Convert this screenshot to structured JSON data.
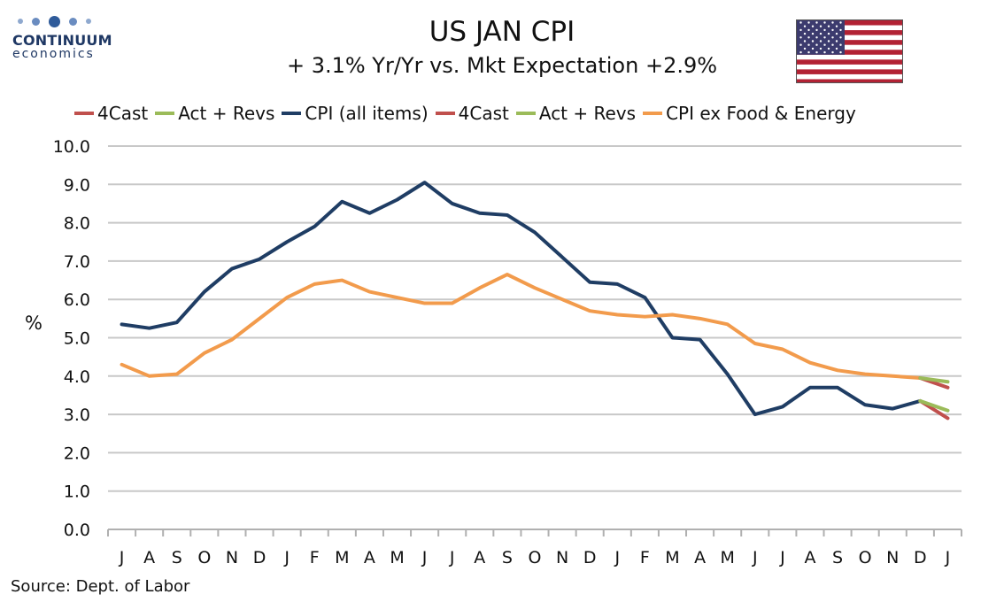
{
  "logo": {
    "name": "CONTINUUM",
    "sub": "economics"
  },
  "header": {
    "title": "US JAN CPI",
    "subtitle": "+ 3.1% Yr/Yr  vs. Mkt Expectation +2.9%"
  },
  "source": "Source: Dept. of Labor",
  "colors": {
    "headline": "#1f3d64",
    "core": "#f29b4c",
    "forecast": "#c0504d",
    "actual": "#9bbb59",
    "grid": "#c8c8c8"
  },
  "chart_data": {
    "type": "line",
    "ylabel": "%",
    "ylim": [
      0,
      10
    ],
    "yticks": [
      "0.0",
      "1.0",
      "2.0",
      "3.0",
      "4.0",
      "5.0",
      "6.0",
      "7.0",
      "8.0",
      "9.0",
      "10.0"
    ],
    "categories": [
      "J",
      "A",
      "S",
      "O",
      "N",
      "D",
      "J",
      "F",
      "M",
      "A",
      "M",
      "J",
      "J",
      "A",
      "S",
      "O",
      "N",
      "D",
      "J",
      "F",
      "M",
      "A",
      "M",
      "J",
      "J",
      "A",
      "S",
      "O",
      "N",
      "D",
      "J"
    ],
    "grid": true,
    "legend_position": "top",
    "legend": [
      "4Cast",
      "Act + Revs",
      "CPI (all items)",
      "4Cast",
      "Act + Revs",
      "CPI ex Food & Energy"
    ],
    "series": [
      {
        "name": "CPI (all items)",
        "color": "#1f3d64",
        "values": [
          5.35,
          5.25,
          5.4,
          6.2,
          6.8,
          7.05,
          7.5,
          7.9,
          8.55,
          8.25,
          8.6,
          9.05,
          8.5,
          8.25,
          8.2,
          7.75,
          7.1,
          6.45,
          6.4,
          6.05,
          5.0,
          4.95,
          4.05,
          3.0,
          3.2,
          3.7,
          3.7,
          3.25,
          3.15,
          3.35,
          null
        ]
      },
      {
        "name": "4Cast",
        "color": "#c0504d",
        "values": [
          null,
          null,
          null,
          null,
          null,
          null,
          null,
          null,
          null,
          null,
          null,
          null,
          null,
          null,
          null,
          null,
          null,
          null,
          null,
          null,
          null,
          null,
          null,
          null,
          null,
          null,
          null,
          null,
          null,
          3.35,
          2.9
        ]
      },
      {
        "name": "Act + Revs",
        "color": "#9bbb59",
        "values": [
          null,
          null,
          null,
          null,
          null,
          null,
          null,
          null,
          null,
          null,
          null,
          null,
          null,
          null,
          null,
          null,
          null,
          null,
          null,
          null,
          null,
          null,
          null,
          null,
          null,
          null,
          null,
          null,
          null,
          3.35,
          3.1
        ]
      },
      {
        "name": "CPI ex Food & Energy",
        "color": "#f29b4c",
        "values": [
          4.3,
          4.0,
          4.05,
          4.6,
          4.95,
          5.5,
          6.05,
          6.4,
          6.5,
          6.2,
          6.05,
          5.9,
          5.9,
          6.3,
          6.65,
          6.3,
          6.0,
          5.7,
          5.6,
          5.55,
          5.6,
          5.5,
          5.35,
          4.85,
          4.7,
          4.35,
          4.15,
          4.05,
          4.0,
          3.95,
          null
        ]
      },
      {
        "name": "4Cast",
        "color": "#c0504d",
        "values": [
          null,
          null,
          null,
          null,
          null,
          null,
          null,
          null,
          null,
          null,
          null,
          null,
          null,
          null,
          null,
          null,
          null,
          null,
          null,
          null,
          null,
          null,
          null,
          null,
          null,
          null,
          null,
          null,
          null,
          3.95,
          3.7
        ]
      },
      {
        "name": "Act + Revs",
        "color": "#9bbb59",
        "values": [
          null,
          null,
          null,
          null,
          null,
          null,
          null,
          null,
          null,
          null,
          null,
          null,
          null,
          null,
          null,
          null,
          null,
          null,
          null,
          null,
          null,
          null,
          null,
          null,
          null,
          null,
          null,
          null,
          null,
          3.95,
          3.85
        ]
      }
    ]
  }
}
